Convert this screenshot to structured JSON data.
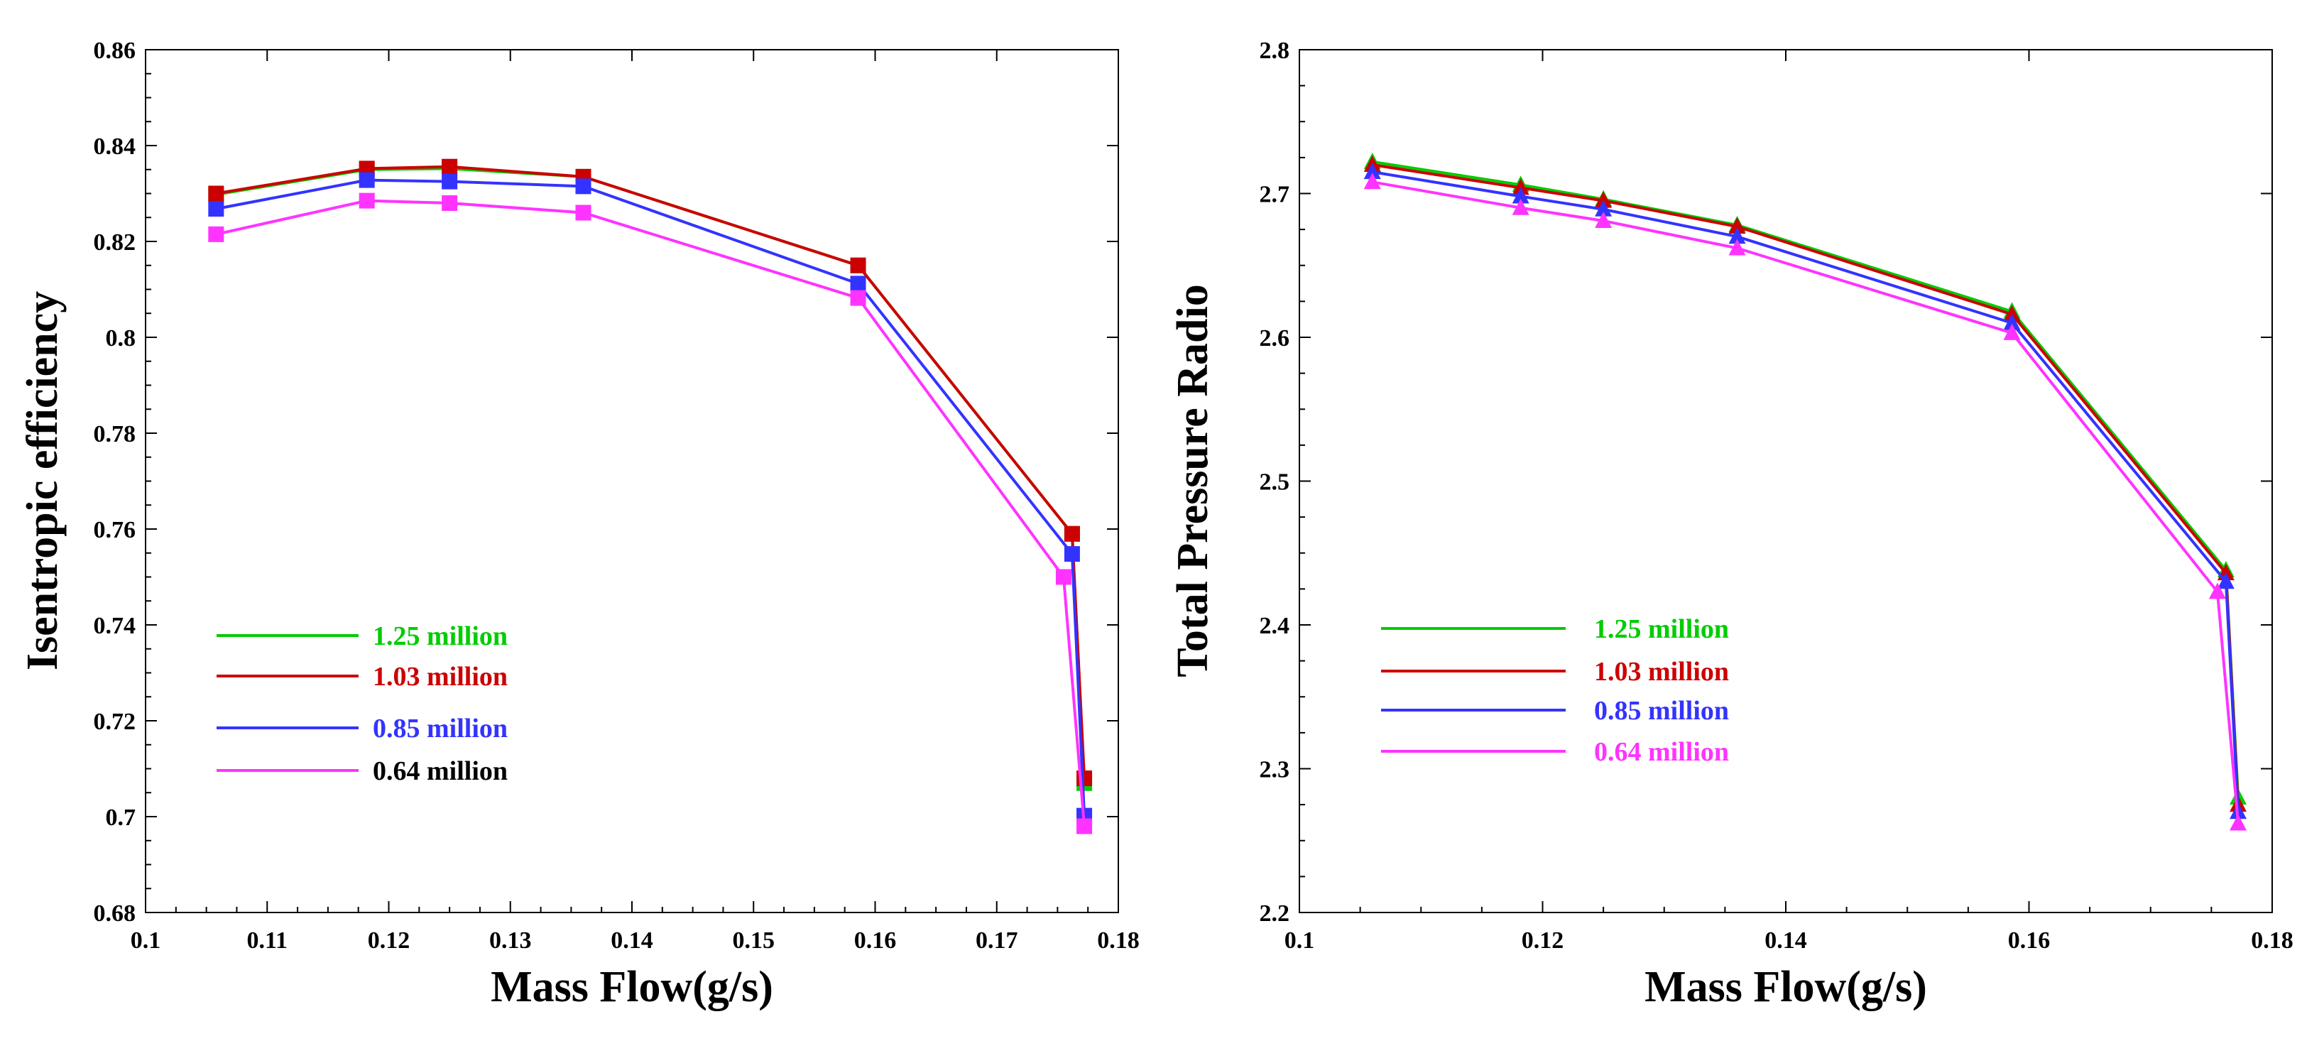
{
  "chart_data": [
    {
      "type": "line",
      "xlabel": "Mass Flow(g/s)",
      "ylabel": "Isentropic efficiency",
      "xlim": [
        0.1,
        0.18
      ],
      "ylim": [
        0.68,
        0.86
      ],
      "xticks": [
        "0.1",
        "0.11",
        "0.12",
        "0.13",
        "0.14",
        "0.15",
        "0.16",
        "0.17",
        "0.18"
      ],
      "yticks": [
        "0.68",
        "0.7",
        "0.72",
        "0.74",
        "0.76",
        "0.78",
        "0.8",
        "0.82",
        "0.84",
        "0.86"
      ],
      "marker": "square",
      "series": [
        {
          "name": "1.25 million",
          "color": "#00cc00",
          "label_color": "#00cc00",
          "x": [
            0.1058,
            0.1182,
            0.125,
            0.136,
            0.1586,
            0.1762,
            0.1772
          ],
          "y": [
            0.8298,
            0.835,
            0.8352,
            0.8335,
            0.815,
            0.759,
            0.707
          ]
        },
        {
          "name": "1.03 million",
          "color": "#cc0000",
          "label_color": "#cc0000",
          "x": [
            0.1058,
            0.1182,
            0.125,
            0.136,
            0.1586,
            0.1762,
            0.1772
          ],
          "y": [
            0.83,
            0.8352,
            0.8356,
            0.8335,
            0.815,
            0.759,
            0.708
          ]
        },
        {
          "name": "0.85 million",
          "color": "#3333ff",
          "label_color": "#3333ff",
          "x": [
            0.1058,
            0.1182,
            0.125,
            0.136,
            0.1586,
            0.1762,
            0.1772
          ],
          "y": [
            0.8268,
            0.8328,
            0.8325,
            0.8315,
            0.8112,
            0.7548,
            0.7002
          ]
        },
        {
          "name": "0.64 million",
          "color": "#ff33ff",
          "label_color": "#000000",
          "x": [
            0.1058,
            0.1182,
            0.125,
            0.136,
            0.1586,
            0.1755,
            0.1772
          ],
          "y": [
            0.8215,
            0.8285,
            0.828,
            0.826,
            0.8082,
            0.75,
            0.698
          ]
        }
      ]
    },
    {
      "type": "line",
      "xlabel": "Mass Flow(g/s)",
      "ylabel": "Total Pressure Radio",
      "xlim": [
        0.1,
        0.18
      ],
      "ylim": [
        2.2,
        2.8
      ],
      "xticks": [
        "0.1",
        "0.12",
        "0.14",
        "0.16",
        "0.18"
      ],
      "yticks": [
        "2.2",
        "2.3",
        "2.4",
        "2.5",
        "2.6",
        "2.7",
        "2.8"
      ],
      "marker": "triangle",
      "series": [
        {
          "name": "1.25 million",
          "color": "#00cc00",
          "label_color": "#00cc00",
          "x": [
            0.106,
            0.1182,
            0.125,
            0.136,
            0.1586,
            0.1762,
            0.1772
          ],
          "y": [
            2.722,
            2.706,
            2.696,
            2.678,
            2.618,
            2.438,
            2.28
          ]
        },
        {
          "name": "1.03 million",
          "color": "#cc0000",
          "label_color": "#cc0000",
          "x": [
            0.106,
            0.1182,
            0.125,
            0.136,
            0.1586,
            0.1762,
            0.1772
          ],
          "y": [
            2.72,
            2.704,
            2.695,
            2.677,
            2.616,
            2.436,
            2.275
          ]
        },
        {
          "name": "0.85 million",
          "color": "#3333ff",
          "label_color": "#3333ff",
          "x": [
            0.106,
            0.1182,
            0.125,
            0.136,
            0.1586,
            0.1762,
            0.1772
          ],
          "y": [
            2.715,
            2.698,
            2.689,
            2.67,
            2.61,
            2.43,
            2.27
          ]
        },
        {
          "name": "0.64 million",
          "color": "#ff33ff",
          "label_color": "#ff33ff",
          "x": [
            0.106,
            0.1182,
            0.125,
            0.136,
            0.1586,
            0.1755,
            0.1772
          ],
          "y": [
            2.708,
            2.69,
            2.681,
            2.662,
            2.603,
            2.423,
            2.262
          ]
        }
      ]
    }
  ]
}
